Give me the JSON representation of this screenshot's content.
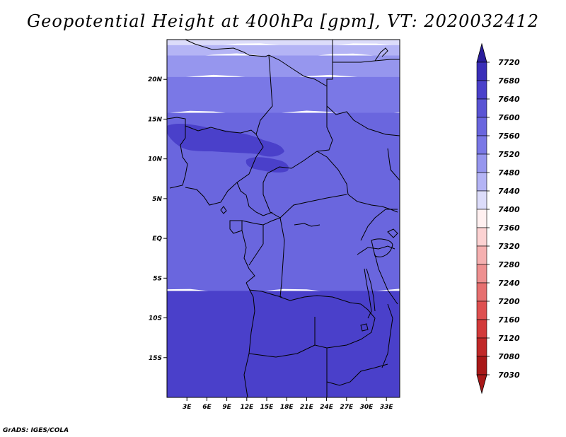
{
  "title": "Geopotential Height at 400hPa [gpm], VT: 2020032412",
  "credit": "GrADS: IGES/COLA",
  "map": {
    "lat_labels": [
      {
        "label": "20N",
        "lat": 20
      },
      {
        "label": "15N",
        "lat": 15
      },
      {
        "label": "10N",
        "lat": 10
      },
      {
        "label": "5N",
        "lat": 5
      },
      {
        "label": "EQ",
        "lat": 0
      },
      {
        "label": "5S",
        "lat": -5
      },
      {
        "label": "10S",
        "lat": -10
      },
      {
        "label": "15S",
        "lat": -15
      }
    ],
    "lon_labels": [
      {
        "label": "3E",
        "lon": 3
      },
      {
        "label": "6E",
        "lon": 6
      },
      {
        "label": "9E",
        "lon": 9
      },
      {
        "label": "12E",
        "lon": 12
      },
      {
        "label": "15E",
        "lon": 15
      },
      {
        "label": "18E",
        "lon": 18
      },
      {
        "label": "21E",
        "lon": 21
      },
      {
        "label": "24E",
        "lon": 24
      },
      {
        "label": "27E",
        "lon": 27
      },
      {
        "label": "30E",
        "lon": 30
      },
      {
        "label": "33E",
        "lon": 33
      }
    ],
    "lon_range": [
      0,
      35
    ],
    "lat_range": [
      -20,
      25
    ],
    "bands": [
      {
        "level": "7440",
        "color": "#dcdcfa",
        "lat": [
          24.3,
          25
        ]
      },
      {
        "level": "7480",
        "color": "#b4b4f5",
        "lat": [
          23.0,
          24.3
        ]
      },
      {
        "level": "7520",
        "color": "#9696ee",
        "lat": [
          20.3,
          23.0
        ]
      },
      {
        "level": "7560",
        "color": "#7a78e6",
        "lat": [
          15.8,
          20.3
        ]
      },
      {
        "level": "7600",
        "color": "#6a66de",
        "lat": [
          -6.6,
          15.8
        ]
      },
      {
        "level": "7640",
        "color": "#4a40ca",
        "lat": [
          -20,
          -6.6
        ]
      }
    ],
    "patches": [
      {
        "level": "7640",
        "color": "#4a40ca",
        "name": "sahel-high-patch"
      },
      {
        "level": "7640",
        "color": "#4a40ca",
        "name": "chad-high-patch"
      }
    ]
  },
  "colorbar": {
    "levels": [
      "7720",
      "7680",
      "7640",
      "7600",
      "7560",
      "7520",
      "7480",
      "7440",
      "7400",
      "7360",
      "7320",
      "7280",
      "7240",
      "7200",
      "7160",
      "7120",
      "7080",
      "7030"
    ],
    "colors": [
      "#2a1d9c",
      "#3a2eb8",
      "#4a40ca",
      "#5a54d4",
      "#6a66de",
      "#7a78e6",
      "#9696ee",
      "#b4b4f5",
      "#dcdcfa",
      "#fff0f0",
      "#fcd2d2",
      "#f5b0b0",
      "#ee9090",
      "#e67070",
      "#de5050",
      "#d23a3a",
      "#c02828",
      "#a81818"
    ],
    "top_color": "#2a1d9c",
    "bottom_color": "#a81818"
  }
}
